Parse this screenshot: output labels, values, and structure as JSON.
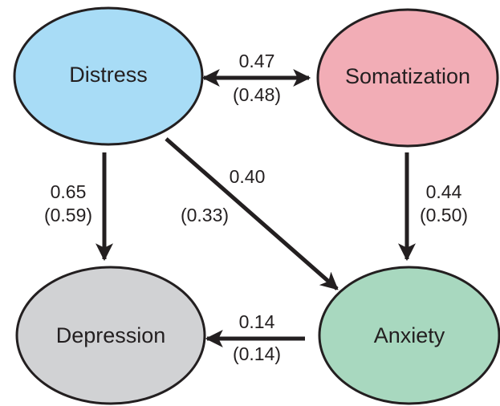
{
  "nodes": [
    {
      "label": "Distress"
    },
    {
      "label": "Somatization"
    },
    {
      "label": "Depression"
    },
    {
      "label": "Anxiety"
    }
  ],
  "edges": [
    {
      "coefficient": "0.47",
      "coefficient_alt": "(0.48)"
    },
    {
      "coefficient": "0.65",
      "coefficient_alt": "(0.59)"
    },
    {
      "coefficient": "0.40",
      "coefficient_alt": "(0.33)"
    },
    {
      "coefficient": "0.44",
      "coefficient_alt": "(0.50)"
    },
    {
      "coefficient": "0.14",
      "coefficient_alt": "(0.14)"
    }
  ]
}
